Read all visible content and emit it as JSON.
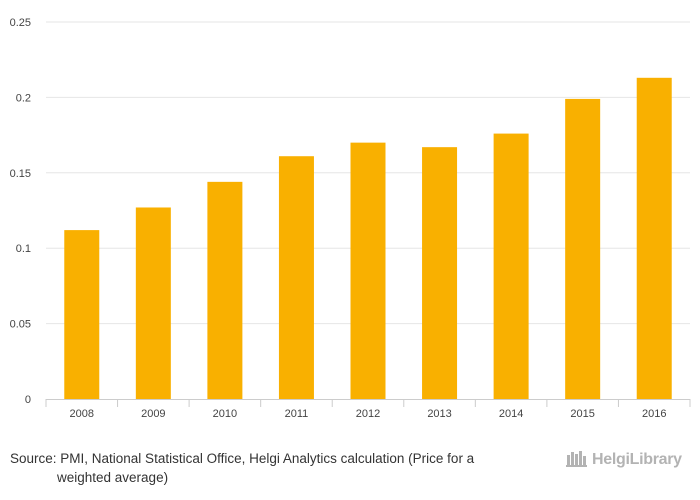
{
  "chart_data": {
    "type": "bar",
    "categories": [
      "2008",
      "2009",
      "2010",
      "2011",
      "2012",
      "2013",
      "2014",
      "2015",
      "2016"
    ],
    "values": [
      0.112,
      0.127,
      0.144,
      0.161,
      0.17,
      0.167,
      0.176,
      0.199,
      0.213
    ],
    "yticks": [
      "0",
      "0.05",
      "0.1",
      "0.15",
      "0.2",
      "0.25"
    ],
    "ylim": [
      0,
      0.25
    ],
    "grid": true,
    "legend": "none",
    "bar_color": "#f9b000",
    "title": "",
    "xlabel": "",
    "ylabel": ""
  },
  "footer": {
    "source_line1": "Source: PMI, National Statistical Office, Helgi Analytics calculation (Price for a",
    "source_line2": "weighted average)",
    "brand": "HelgiLibrary",
    "brand_icon": "helgi-library-logo-icon"
  }
}
